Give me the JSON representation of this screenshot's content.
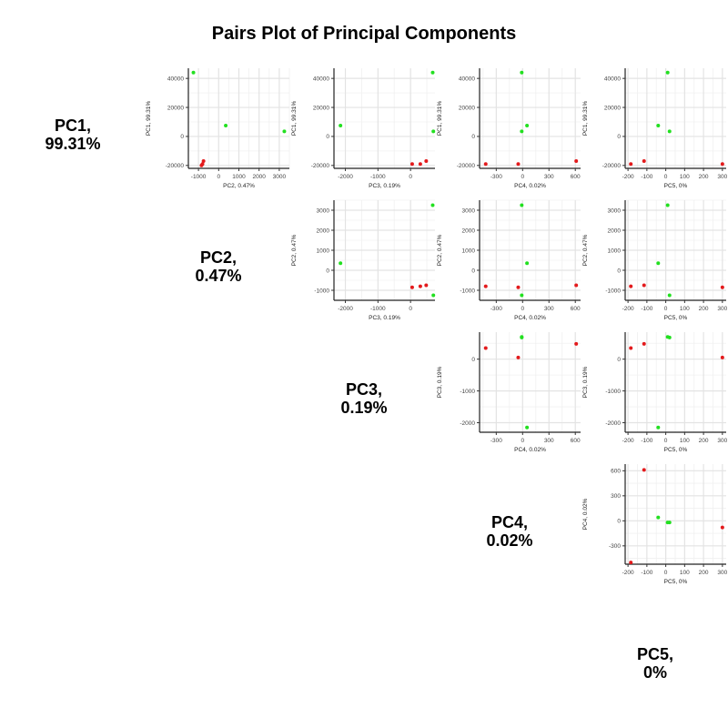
{
  "title": "Pairs Plot of Principal Components",
  "diagonal_labels": [
    {
      "name": "PC1,",
      "pct": "99.31%"
    },
    {
      "name": "PC2,",
      "pct": "0.47%"
    },
    {
      "name": "PC3,",
      "pct": "0.19%"
    },
    {
      "name": "PC4,",
      "pct": "0.02%"
    },
    {
      "name": "PC5,",
      "pct": "0%"
    }
  ],
  "group_colors": {
    "red": "#e31a1c",
    "green": "#22e020"
  },
  "chart_data": [
    {
      "type": "scatter",
      "panel": "PC2 vs PC1",
      "xlabel": "PC2, 0.47%",
      "ylabel": "PC1, 99.31%",
      "xlim": [
        -1500,
        3500
      ],
      "ylim": [
        -22000,
        47000
      ],
      "xticks": [
        -1000,
        0,
        1000,
        2000,
        3000
      ],
      "yticks": [
        -20000,
        0,
        20000,
        40000
      ],
      "series": [
        {
          "color": "red",
          "x": [
            -800,
            -850,
            -750
          ],
          "y": [
            -19000,
            -20000,
            -17000
          ]
        },
        {
          "color": "green",
          "x": [
            -1250,
            350,
            3250
          ],
          "y": [
            44000,
            7500,
            3500
          ]
        }
      ]
    },
    {
      "type": "scatter",
      "panel": "PC3 vs PC1",
      "xlabel": "PC3, 0.19%",
      "ylabel": "PC1, 99.31%",
      "xlim": [
        -2350,
        750
      ],
      "ylim": [
        -22000,
        47000
      ],
      "xticks": [
        -2000,
        -1000,
        0
      ],
      "yticks": [
        -20000,
        0,
        20000,
        40000
      ],
      "series": [
        {
          "color": "red",
          "x": [
            50,
            300,
            480
          ],
          "y": [
            -19000,
            -19000,
            -17000
          ]
        },
        {
          "color": "green",
          "x": [
            -2150,
            700,
            680
          ],
          "y": [
            7500,
            3500,
            44000
          ]
        }
      ]
    },
    {
      "type": "scatter",
      "panel": "PC4 vs PC1",
      "xlabel": "PC4, 0.02%",
      "ylabel": "PC1, 99.31%",
      "xlim": [
        -490,
        660
      ],
      "ylim": [
        -22000,
        47000
      ],
      "xticks": [
        -300,
        0,
        300,
        600
      ],
      "yticks": [
        -20000,
        0,
        20000,
        40000
      ],
      "series": [
        {
          "color": "red",
          "x": [
            -420,
            -50,
            610
          ],
          "y": [
            -19000,
            -19000,
            -17000
          ]
        },
        {
          "color": "green",
          "x": [
            -10,
            50,
            -10
          ],
          "y": [
            44000,
            7500,
            3500
          ]
        }
      ]
    },
    {
      "type": "scatter",
      "panel": "PC5 vs PC1",
      "xlabel": "PC5, 0%",
      "ylabel": "PC1, 99.31%",
      "xlim": [
        -215,
        320
      ],
      "ylim": [
        -22000,
        47000
      ],
      "xticks": [
        -200,
        -100,
        0,
        100,
        200,
        300
      ],
      "yticks": [
        -20000,
        0,
        20000,
        40000
      ],
      "series": [
        {
          "color": "red",
          "x": [
            -185,
            -115,
            300
          ],
          "y": [
            -19000,
            -17000,
            -19000
          ]
        },
        {
          "color": "green",
          "x": [
            10,
            -40,
            20
          ],
          "y": [
            44000,
            7500,
            3500
          ]
        }
      ]
    },
    {
      "type": "scatter",
      "panel": "PC3 vs PC2",
      "xlabel": "PC3, 0.19%",
      "ylabel": "PC2, 0.47%",
      "xlim": [
        -2350,
        750
      ],
      "ylim": [
        -1500,
        3500
      ],
      "xticks": [
        -2000,
        -1000,
        0
      ],
      "yticks": [
        -1000,
        0,
        1000,
        2000,
        3000
      ],
      "series": [
        {
          "color": "red",
          "x": [
            50,
            300,
            480
          ],
          "y": [
            -850,
            -800,
            -750
          ]
        },
        {
          "color": "green",
          "x": [
            -2150,
            700,
            680
          ],
          "y": [
            350,
            -1250,
            3250
          ]
        }
      ]
    },
    {
      "type": "scatter",
      "panel": "PC4 vs PC2",
      "xlabel": "PC4, 0.02%",
      "ylabel": "PC2, 0.47%",
      "xlim": [
        -490,
        660
      ],
      "ylim": [
        -1500,
        3500
      ],
      "xticks": [
        -300,
        0,
        300,
        600
      ],
      "yticks": [
        -1000,
        0,
        1000,
        2000,
        3000
      ],
      "series": [
        {
          "color": "red",
          "x": [
            -420,
            -50,
            610
          ],
          "y": [
            -800,
            -850,
            -750
          ]
        },
        {
          "color": "green",
          "x": [
            -10,
            50,
            -10
          ],
          "y": [
            3250,
            350,
            -1250
          ]
        }
      ]
    },
    {
      "type": "scatter",
      "panel": "PC5 vs PC2",
      "xlabel": "PC5, 0%",
      "ylabel": "PC2, 0.47%",
      "xlim": [
        -215,
        320
      ],
      "ylim": [
        -1500,
        3500
      ],
      "xticks": [
        -200,
        -100,
        0,
        100,
        200,
        300
      ],
      "yticks": [
        -1000,
        0,
        1000,
        2000,
        3000
      ],
      "series": [
        {
          "color": "red",
          "x": [
            -185,
            -115,
            300
          ],
          "y": [
            -800,
            -750,
            -850
          ]
        },
        {
          "color": "green",
          "x": [
            10,
            -40,
            20
          ],
          "y": [
            3250,
            350,
            -1250
          ]
        }
      ]
    },
    {
      "type": "scatter",
      "panel": "PC4 vs PC3",
      "xlabel": "PC4, 0.02%",
      "ylabel": "PC3, 0.19%",
      "xlim": [
        -490,
        660
      ],
      "ylim": [
        -2300,
        850
      ],
      "xticks": [
        -300,
        0,
        300,
        600
      ],
      "yticks": [
        -2000,
        -1000,
        0
      ],
      "series": [
        {
          "color": "red",
          "x": [
            -420,
            -50,
            610
          ],
          "y": [
            350,
            50,
            480
          ]
        },
        {
          "color": "green",
          "x": [
            -10,
            -10,
            50
          ],
          "y": [
            700,
            680,
            -2150
          ]
        }
      ]
    },
    {
      "type": "scatter",
      "panel": "PC5 vs PC3",
      "xlabel": "PC5, 0%",
      "ylabel": "PC3, 0.19%",
      "xlim": [
        -215,
        320
      ],
      "ylim": [
        -2300,
        850
      ],
      "xticks": [
        -200,
        -100,
        0,
        100,
        200,
        300
      ],
      "yticks": [
        -2000,
        -1000,
        0
      ],
      "series": [
        {
          "color": "red",
          "x": [
            -185,
            -115,
            300
          ],
          "y": [
            350,
            480,
            50
          ]
        },
        {
          "color": "green",
          "x": [
            10,
            20,
            -40
          ],
          "y": [
            700,
            680,
            -2150
          ]
        }
      ]
    },
    {
      "type": "scatter",
      "panel": "PC5 vs PC4",
      "xlabel": "PC5, 0%",
      "ylabel": "PC4, 0.02%",
      "xlim": [
        -215,
        320
      ],
      "ylim": [
        -520,
        680
      ],
      "xticks": [
        -200,
        -100,
        0,
        100,
        200,
        300
      ],
      "yticks": [
        -300,
        0,
        300,
        600
      ],
      "series": [
        {
          "color": "red",
          "x": [
            -185,
            -115,
            300
          ],
          "y": [
            -500,
            610,
            -80
          ]
        },
        {
          "color": "green",
          "x": [
            -40,
            10,
            20
          ],
          "y": [
            40,
            -20,
            -20
          ]
        }
      ]
    }
  ]
}
